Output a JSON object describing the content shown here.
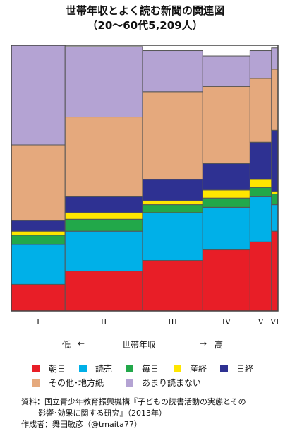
{
  "chart_data": {
    "type": "mosaic",
    "title": "世帯年収とよく読む新聞の関連図",
    "subtitle": "（20～60代5,209人）",
    "xlabel": "世帯年収",
    "x_low": "低",
    "x_high": "高",
    "arrow_left": "←",
    "arrow_right": "→",
    "categories": [
      "I",
      "II",
      "III",
      "IV",
      "V",
      "VI"
    ],
    "column_widths": [
      0.25,
      0.36,
      0.28,
      0.22,
      0.1,
      0.03
    ],
    "series": [
      {
        "name": "朝日",
        "color": "#e81e27",
        "values": [
          0.1,
          0.15,
          0.19,
          0.23,
          0.26,
          0.3
        ]
      },
      {
        "name": "読売",
        "color": "#00b0e8",
        "values": [
          0.15,
          0.15,
          0.18,
          0.16,
          0.17,
          0.1
        ]
      },
      {
        "name": "毎日",
        "color": "#22a84a",
        "values": [
          0.035,
          0.045,
          0.03,
          0.035,
          0.035,
          0.04
        ]
      },
      {
        "name": "産経",
        "color": "#ffe600",
        "values": [
          0.015,
          0.025,
          0.015,
          0.03,
          0.03,
          0.01
        ]
      },
      {
        "name": "日経",
        "color": "#2e3192",
        "values": [
          0.04,
          0.06,
          0.08,
          0.1,
          0.14,
          0.23
        ]
      },
      {
        "name": "その他･地方紙",
        "color": "#e5a97d",
        "values": [
          0.285,
          0.3,
          0.33,
          0.29,
          0.24,
          0.23
        ]
      },
      {
        "name": "あまり読まない",
        "color": "#b4a3d3",
        "values": [
          0.375,
          0.265,
          0.155,
          0.115,
          0.105,
          0.08
        ]
      }
    ],
    "ylim": [
      0,
      1
    ]
  },
  "legend": [
    {
      "label": "朝日",
      "color": "#e81e27"
    },
    {
      "label": "読売",
      "color": "#00b0e8"
    },
    {
      "label": "毎日",
      "color": "#22a84a"
    },
    {
      "label": "産経",
      "color": "#ffe600"
    },
    {
      "label": "日経",
      "color": "#2e3192"
    },
    {
      "label": "その他･地方紙",
      "color": "#e5a97d"
    },
    {
      "label": "あまり読まない",
      "color": "#b4a3d3"
    }
  ],
  "source": {
    "line1": "資料：国立青少年教育振興機構『子どもの読書活動の実態とその",
    "line2": "影響･効果に関する研究』（2013年）",
    "line3": "作成者：舞田敏彦（@tmaita77）"
  }
}
